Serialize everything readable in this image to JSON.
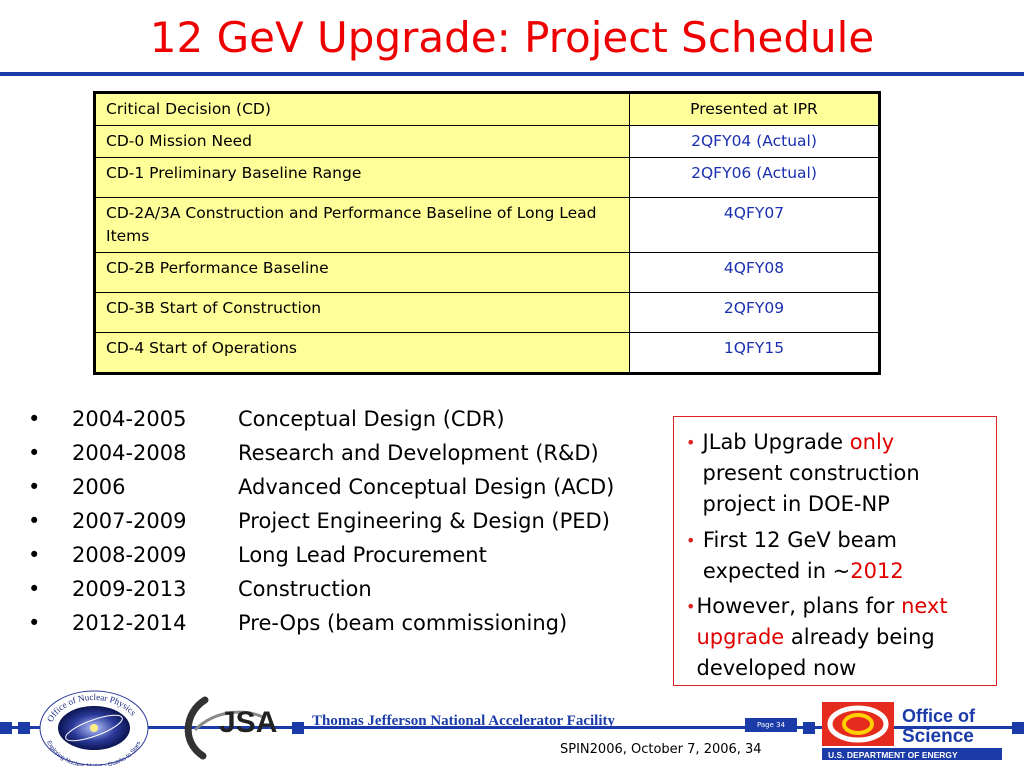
{
  "title": "12 GeV Upgrade: Project Schedule",
  "table": {
    "headers": [
      "Critical Decision (CD)",
      "Presented at IPR"
    ],
    "rows": [
      {
        "cd": "CD-0 Mission Need",
        "ipr": "2QFY04 (Actual)"
      },
      {
        "cd": "CD-1 Preliminary Baseline Range",
        "ipr": "2QFY06 (Actual)"
      },
      {
        "cd": "CD-2A/3A Construction and Performance Baseline of Long Lead Items",
        "ipr": "4QFY07"
      },
      {
        "cd": "CD-2B Performance Baseline",
        "ipr": "4QFY08"
      },
      {
        "cd": "CD-3B Start of Construction",
        "ipr": "2QFY09"
      },
      {
        "cd": "CD-4 Start of Operations",
        "ipr": "1QFY15"
      }
    ]
  },
  "schedule": [
    {
      "years": "2004-2005",
      "desc": "Conceptual Design (CDR)"
    },
    {
      "years": "2004-2008",
      "desc": "Research and Development (R&D)"
    },
    {
      "years": "2006",
      "desc": "Advanced Conceptual Design (ACD)"
    },
    {
      "years": "2007-2009",
      "desc": "Project Engineering & Design (PED)"
    },
    {
      "years": "2008-2009",
      "desc": "Long Lead Procurement"
    },
    {
      "years": "2009-2013",
      "desc": "Construction"
    },
    {
      "years": "2012-2014",
      "desc": "Pre-Ops (beam commissioning)"
    }
  ],
  "box": {
    "b1": {
      "pre": "JLab Upgrade ",
      "red": "only",
      "post": "present construction project in DOE-NP"
    },
    "b2": {
      "pre": "First 12 GeV beam expected in ~",
      "red": "2012"
    },
    "b3": {
      "pre": "However, plans for ",
      "red": "next upgrade",
      "post": " already being developed now"
    }
  },
  "footer": {
    "lab": "Thomas Jefferson National Accelerator Facility",
    "page": "Page 34",
    "conf": "SPIN2006, October 7, 2006, 34"
  },
  "logos": {
    "np_top": "Office of Nuclear Physics",
    "np_bottom": "Exploring Nuclear Matter - Quarks to Stars",
    "jsa": "JSA",
    "os_line1": "Office of",
    "os_line2": "Science",
    "os_line3": "U.S. DEPARTMENT OF ENERGY"
  },
  "colors": {
    "title": "#ee0000",
    "rule": "#1b3ba8",
    "table_bg": "#ffff99",
    "ipr_text": "#1a2fb0",
    "box_border": "#dd2222"
  }
}
